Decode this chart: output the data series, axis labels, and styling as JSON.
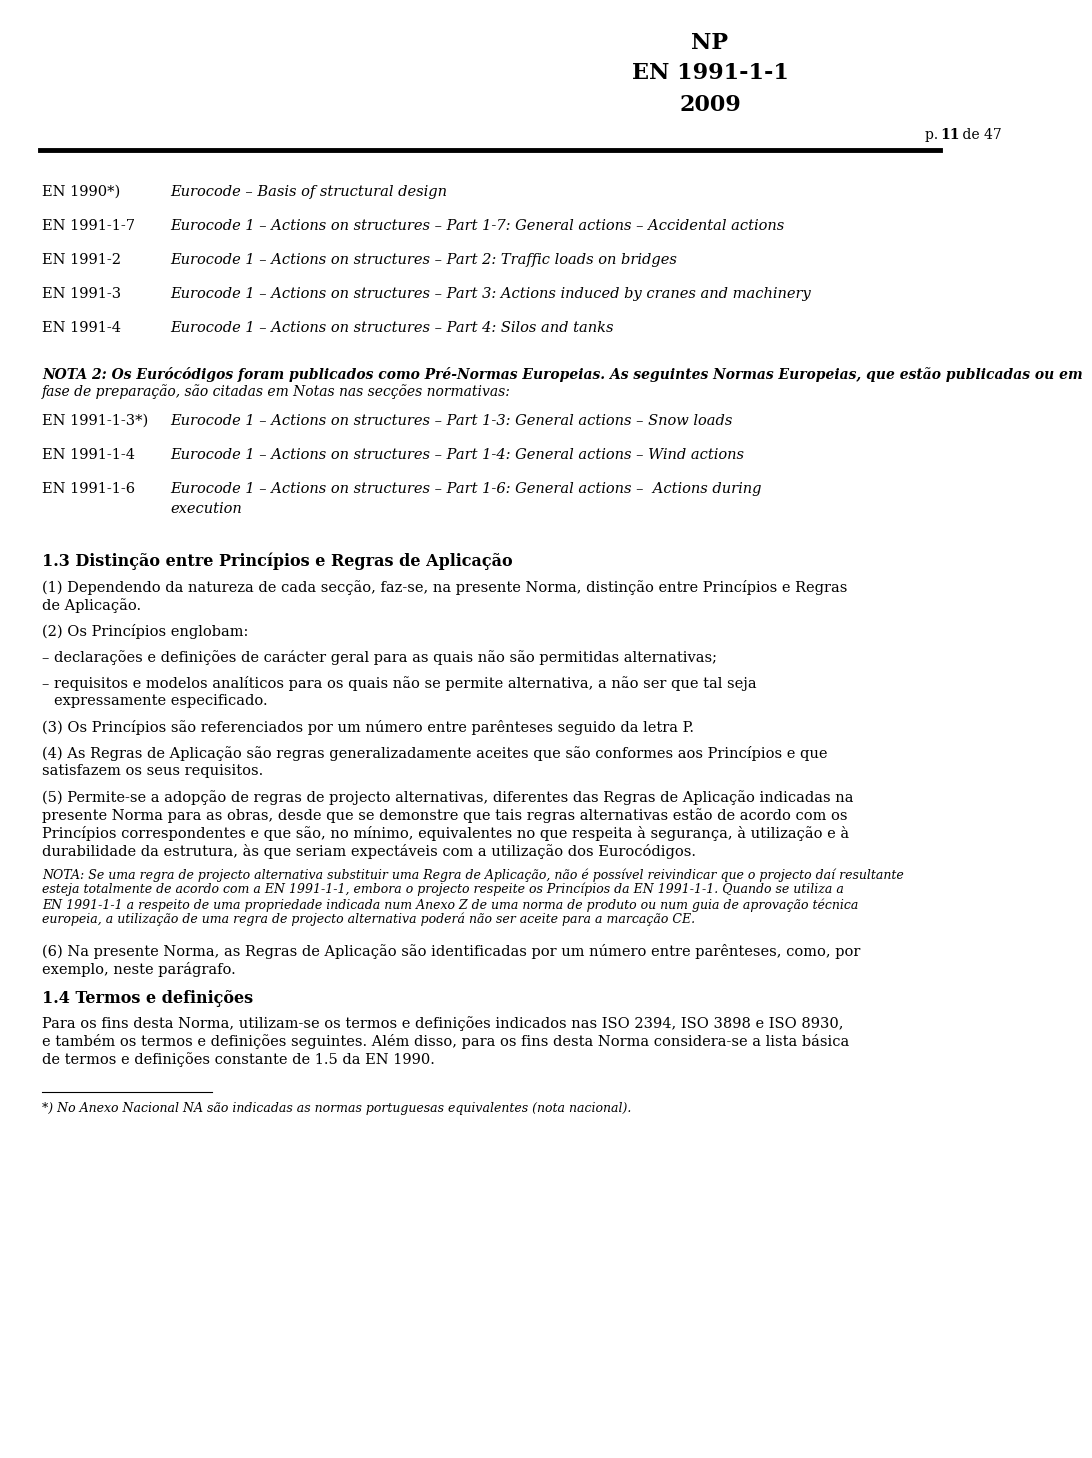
{
  "header_NP": "NP",
  "header_EN": "EN 1991-1-1",
  "header_year": "2009",
  "page_info": "p. <b>11</b> de 47",
  "page_info_plain": "p. 11 de 47",
  "bg_color": "#ffffff",
  "text_color": "#000000",
  "sections": [
    {
      "label": "EN 1990*)",
      "text": "Eurocode – Basis of structural design"
    },
    {
      "label": "EN 1991-1-7",
      "text": "Eurocode 1 – Actions on structures – Part 1-7: General actions – Accidental actions"
    },
    {
      "label": "EN 1991-2",
      "text": "Eurocode 1 – Actions on structures – Part 2: Traffic loads on bridges"
    },
    {
      "label": "EN 1991-3",
      "text": "Eurocode 1 – Actions on structures – Part 3: Actions induced by cranes and machinery"
    },
    {
      "label": "EN 1991-4",
      "text": "Eurocode 1 – Actions on structures – Part 4: Silos and tanks"
    }
  ],
  "nota2_line1": "NOTA 2: Os Eurócódigos foram publicados como Pré-Normas Europeias. As seguintes Normas Europeias, que estão publicadas ou em",
  "nota2_line2": "fase de preparação, são citadas em Notas nas secções normativas:",
  "nota2_sections": [
    {
      "label": "EN 1991-1-3*)",
      "text": "Eurocode 1 – Actions on structures – Part 1-3: General actions – Snow loads"
    },
    {
      "label": "EN 1991-1-4",
      "text": "Eurocode 1 – Actions on structures – Part 1-4: General actions – Wind actions"
    },
    {
      "label": "EN 1991-1-6",
      "text_line1": "Eurocode 1 – Actions on structures – Part 1-6: General actions –  Actions during",
      "text_line2": "execution"
    }
  ],
  "section_13_title": "1.3 Distinção entre Princípios e Regras de Aplicação",
  "para1_line1": "(1) Dependendo da natureza de cada secção, faz-se, na presente Norma, distinção entre Princípios e Regras",
  "para1_line2": "de Aplicação.",
  "para2": "(2) Os Princípios englobam:",
  "bullet1": "– declarações e definições de carácter geral para as quais não são permitidas alternativas;",
  "bullet2_line1": "– requisitos e modelos analíticos para os quais não se permite alternativa, a não ser que tal seja",
  "bullet2_line2": "  expressamente especificado.",
  "para3": "(3) Os Princípios são referenciados por um número entre parênteses seguido da letra P.",
  "para4_line1": "(4) As Regras de Aplicação são regras generalizadamente aceites que são conformes aos Princípios e que",
  "para4_line2": "satisfazem os seus requisitos.",
  "para5_line1": "(5) Permite-se a adopção de regras de projecto alternativas, diferentes das Regras de Aplicação indicadas na",
  "para5_line2": "presente Norma para as obras, desde que se demonstre que tais regras alternativas estão de acordo com os",
  "para5_line3": "Princípios correspondentes e que são, no mínimo, equivalentes no que respeita à segurança, à utilização e à",
  "para5_line4": "durabilidade da estrutura, às que seriam expectáveis com a utilização dos Eurocódigos.",
  "nota_italic_lines": [
    "NOTA: Se uma regra de projecto alternativa substituir uma Regra de Aplicação, não é possível reivindicar que o projecto daí resultante",
    "esteja totalmente de acordo com a EN 1991-1-1, embora o projecto respeite os Princípios da EN 1991-1-1. Quando se utiliza a",
    "EN 1991-1-1 a respeito de uma propriedade indicada num Anexo Z de uma norma de produto ou num guia de aprovação técnica",
    "europeia, a utilização de uma regra de projecto alternativa poderá não ser aceite para a marcação CE."
  ],
  "para6_line1": "(6) Na presente Norma, as Regras de Aplicação são identificadas por um número entre parênteses, como, por",
  "para6_line2": "exemplo, neste parágrafo.",
  "section_14_title": "1.4 Termos e definições",
  "para14_line1": "Para os fins desta Norma, utilizam-se os termos e definições indicados nas ISO 2394, ISO 3898 e ISO 8930,",
  "para14_line2": "e também os termos e definições seguintes. Além disso, para os fins desta Norma considera-se a lista básica",
  "para14_line3": "de termos e definições constante de 1.5 da EN 1990.",
  "footnote": "*) No Anexo Nacional NA são indicadas as normas portuguesas equivalentes (nota nacional)."
}
